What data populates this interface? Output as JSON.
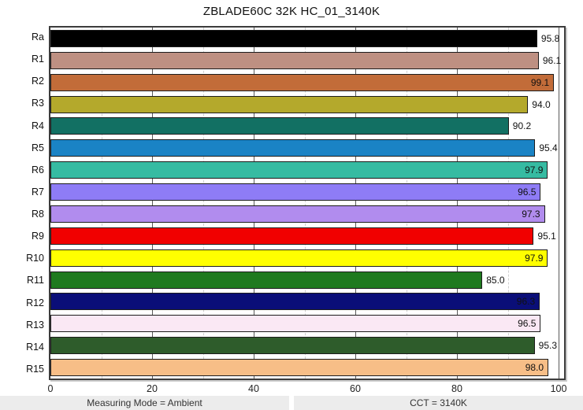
{
  "title": "ZBLADE60C 32K HC_01_3140K",
  "chart_data": {
    "type": "bar",
    "orientation": "horizontal",
    "title": "ZBLADE60C 32K HC_01_3140K",
    "categories": [
      "Ra",
      "R1",
      "R2",
      "R3",
      "R4",
      "R5",
      "R6",
      "R7",
      "R8",
      "R9",
      "R10",
      "R11",
      "R12",
      "R13",
      "R14",
      "R15"
    ],
    "values": [
      95.8,
      96.1,
      99.1,
      94.0,
      90.2,
      95.4,
      97.9,
      96.5,
      97.3,
      95.1,
      97.9,
      85.0,
      96.3,
      96.5,
      95.3,
      98.0
    ],
    "bar_colors": [
      "#000000",
      "#BE9082",
      "#C26C39",
      "#B4A92C",
      "#127063",
      "#1A83C5",
      "#36BBA2",
      "#8E7CF6",
      "#B18CEE",
      "#F10000",
      "#FFFF00",
      "#1F7A1F",
      "#0A0E78",
      "#FAE8F4",
      "#2E5C2B",
      "#F7BE87"
    ],
    "xlim": [
      0,
      100
    ],
    "x_ticks": [
      0,
      20,
      40,
      60,
      80,
      100
    ],
    "x_minor_gridlines": [
      10,
      30,
      50,
      70,
      90
    ],
    "grid": true,
    "legend": false,
    "value_label_decimals": 1,
    "value_label_inside_threshold": 96.3
  },
  "footer": {
    "left": "Measuring Mode = Ambient",
    "right": "CCT = 3140K"
  }
}
